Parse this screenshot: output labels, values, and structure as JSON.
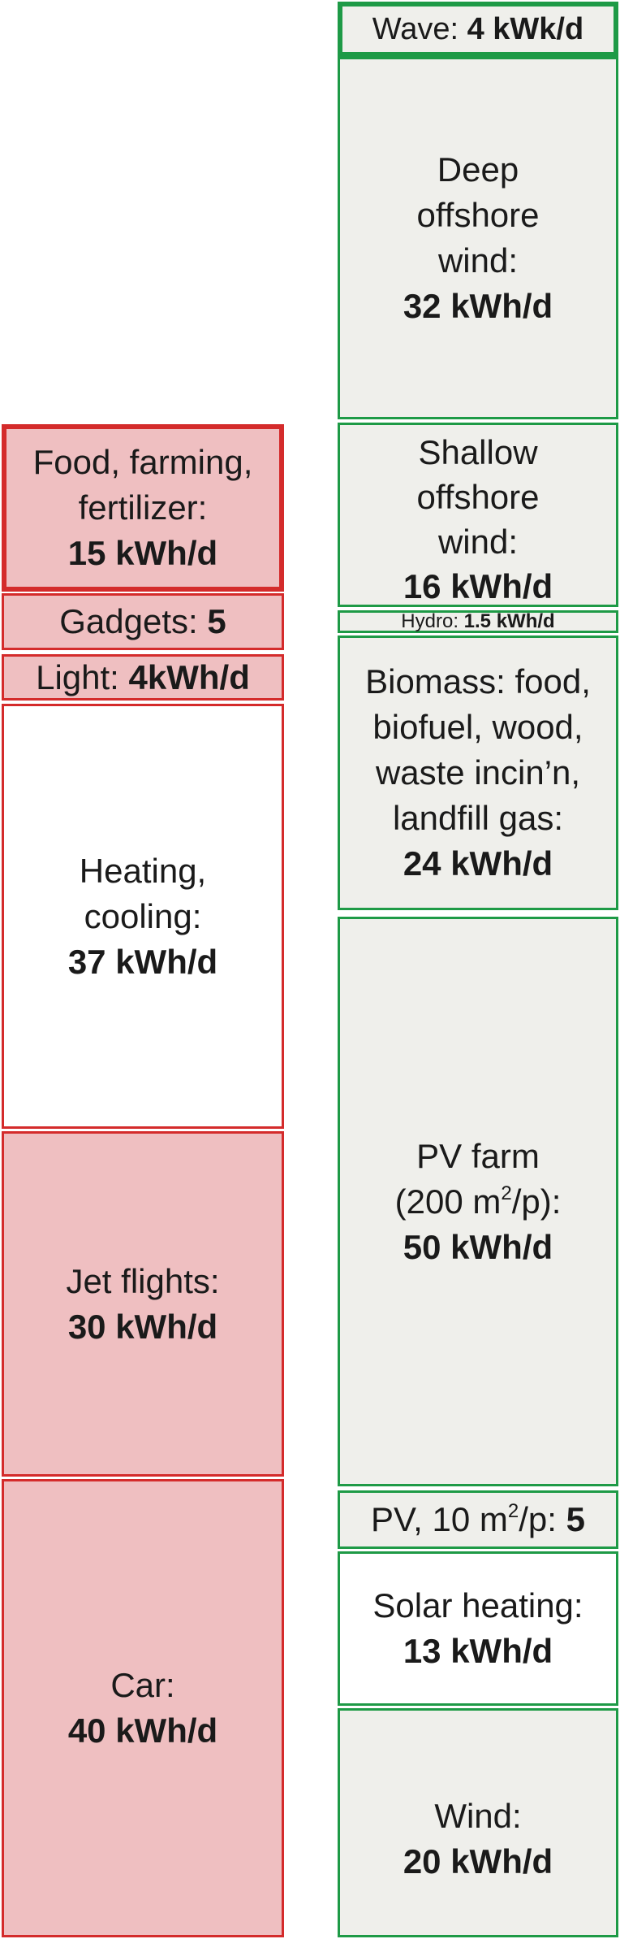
{
  "consumption": {
    "food": {
      "line1": "Food, farming,",
      "line2": "fertilizer:",
      "value": "15 kWh/d"
    },
    "gadgets": {
      "label": "Gadgets: ",
      "value": "5"
    },
    "light": {
      "label": "Light: ",
      "value": "4kWh/d"
    },
    "heating": {
      "line1": "Heating,",
      "line2": "cooling:",
      "value": "37 kWh/d"
    },
    "jet": {
      "line1": "Jet flights:",
      "value": "30 kWh/d"
    },
    "car": {
      "line1": "Car:",
      "value": "40 kWh/d"
    }
  },
  "production": {
    "wave": {
      "label": "Wave: ",
      "value": "4 kWk/d"
    },
    "deep_wind": {
      "line1": "Deep",
      "line2": "offshore",
      "line3": "wind:",
      "value": "32 kWh/d"
    },
    "shallow_wind": {
      "line1": "Shallow",
      "line2": "offshore",
      "line3": "wind:",
      "value": "16 kWh/d"
    },
    "hydro": {
      "label": "Hydro: ",
      "value": "1.5 kWh/d"
    },
    "biomass": {
      "line1": "Biomass: food,",
      "line2": "biofuel, wood,",
      "line3": "waste incin’n,",
      "line4": "landfill gas:",
      "value": "24 kWh/d"
    },
    "pv_farm": {
      "line1": "PV farm",
      "line2a": "(200 m",
      "line2sup": "2",
      "line2b": "/p):",
      "value": "50 kWh/d"
    },
    "pv_roof": {
      "label_a": "PV, 10 m",
      "label_sup": "2",
      "label_b": "/p: ",
      "value": "5"
    },
    "solar_heating": {
      "line1": "Solar heating:",
      "value": "13 kWh/d"
    },
    "wind": {
      "line1": "Wind:",
      "value": "20 kWh/d"
    }
  }
}
